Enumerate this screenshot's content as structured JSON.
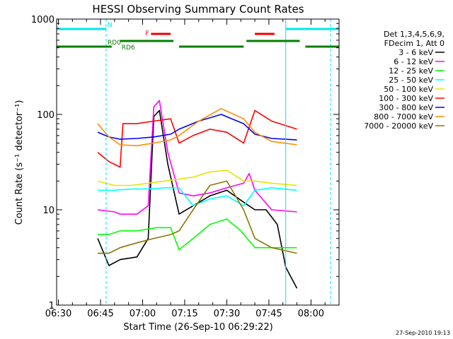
{
  "chart_data": {
    "type": "line",
    "title": "HESSI Observing Summary Count Rates",
    "xlabel": "Start Time (26-Sep-10 06:29:22)",
    "ylabel": "Count Rate (s⁻¹ detector⁻¹)",
    "yscale": "log",
    "ylim": [
      1,
      1000
    ],
    "xlim": [
      "06:29:22",
      "08:10:00"
    ],
    "x_ticks": [
      "06:30",
      "06:45",
      "07:00",
      "07:15",
      "07:30",
      "07:45",
      "08:00"
    ],
    "y_ticks": [
      "1",
      "10",
      "100",
      "1000"
    ],
    "grid": false,
    "legend_position": "right",
    "legend_header": [
      "Det 1,3,4,5,6,9,",
      "FDecim 1, Att 0"
    ],
    "footer": "27-Sep-2010 19:13",
    "flags": [
      {
        "name": "N",
        "color": "#00e5ee",
        "intervals": [
          [
            "06:29:22",
            "06:47:00"
          ],
          [
            "07:51:00",
            "08:10:00"
          ]
        ]
      },
      {
        "name": "F",
        "color": "#ee0000",
        "intervals": [
          [
            "07:03:00",
            "07:10:00"
          ],
          [
            "07:40:00",
            "07:47:00"
          ]
        ]
      },
      {
        "name": "RD0",
        "color": "#008000",
        "intervals": [
          [
            "06:52:00",
            "07:11:00"
          ],
          [
            "07:37:00",
            "07:56:00"
          ]
        ]
      },
      {
        "name": "RD6",
        "color": "#008000",
        "intervals": [
          [
            "06:29:22",
            "06:49:00"
          ],
          [
            "07:13:00",
            "07:36:00"
          ],
          [
            "07:58:00",
            "08:10:00"
          ]
        ]
      }
    ],
    "vlines": [
      {
        "time": "06:29:22",
        "style": "solid",
        "color": "#00e5ee"
      },
      {
        "time": "06:47:00",
        "style": "dashed",
        "color": "#00e5ee"
      },
      {
        "time": "07:51:00",
        "style": "solid",
        "color": "#00e5ee"
      },
      {
        "time": "08:07:00",
        "style": "dashed",
        "color": "#00e5ee"
      }
    ],
    "series": [
      {
        "name": "3 - 6 keV",
        "color": "#000000",
        "x": [
          "06:44:00",
          "06:48:00",
          "06:52:00",
          "06:58:00",
          "07:02:00",
          "07:04:00",
          "07:06:00",
          "07:09:00",
          "07:13:00",
          "07:18:00",
          "07:24:00",
          "07:30:00",
          "07:36:00",
          "07:40:00",
          "07:44:00",
          "07:48:00",
          "07:51:00",
          "07:55:00"
        ],
        "y": [
          5,
          2.6,
          3,
          3.2,
          5,
          95,
          110,
          30,
          9,
          11,
          14,
          16,
          12,
          10,
          10,
          7,
          2.5,
          1.5
        ]
      },
      {
        "name": "6 - 12 keV",
        "color": "#ff00ff",
        "x": [
          "06:44:00",
          "06:50:00",
          "06:52:00",
          "06:58:00",
          "07:02:00",
          "07:04:00",
          "07:06:00",
          "07:09:00",
          "07:13:00",
          "07:18:00",
          "07:24:00",
          "07:30:00",
          "07:36:00",
          "07:38:00",
          "07:40:00",
          "07:46:00",
          "07:55:00"
        ],
        "y": [
          10,
          9.5,
          9,
          9,
          11,
          120,
          140,
          40,
          15,
          14,
          15,
          17,
          19,
          24,
          16,
          10,
          9.5
        ]
      },
      {
        "name": "12 - 25 keV",
        "color": "#00ff00",
        "x": [
          "06:44:00",
          "06:48:00",
          "06:52:00",
          "06:58:00",
          "07:05:00",
          "07:10:00",
          "07:13:00",
          "07:18:00",
          "07:24:00",
          "07:30:00",
          "07:35:00",
          "07:40:00",
          "07:48:00",
          "07:55:00"
        ],
        "y": [
          5.5,
          5.5,
          6,
          6,
          6.5,
          6.5,
          3.8,
          5,
          7,
          8,
          6,
          4,
          4,
          4
        ]
      },
      {
        "name": "25 - 50 keV",
        "color": "#00ffff",
        "x": [
          "06:44:00",
          "06:50:00",
          "06:56:00",
          "07:02:00",
          "07:08:00",
          "07:13:00",
          "07:18:00",
          "07:24:00",
          "07:30:00",
          "07:36:00",
          "07:40:00",
          "07:46:00",
          "07:55:00"
        ],
        "y": [
          16,
          16,
          16.5,
          16.5,
          17,
          17,
          11,
          13,
          14,
          11,
          16,
          17,
          16
        ]
      },
      {
        "name": "50 - 100 keV",
        "color": "#e6e600",
        "x": [
          "06:44:00",
          "06:50:00",
          "06:56:00",
          "07:02:00",
          "07:08:00",
          "07:13:00",
          "07:18:00",
          "07:24:00",
          "07:30:00",
          "07:36:00",
          "07:40:00",
          "07:46:00",
          "07:55:00"
        ],
        "y": [
          20,
          18,
          18,
          19,
          20,
          21,
          22,
          25,
          26,
          20,
          20,
          19,
          18
        ]
      },
      {
        "name": "100 - 300 keV",
        "color": "#ff0000",
        "x": [
          "06:44:00",
          "06:48:00",
          "06:52:00",
          "06:53:00",
          "06:58:00",
          "07:04:00",
          "07:10:00",
          "07:13:00",
          "07:18:00",
          "07:24:00",
          "07:30:00",
          "07:36:00",
          "07:40:00",
          "07:46:00",
          "07:55:00"
        ],
        "y": [
          40,
          32,
          28,
          80,
          80,
          85,
          90,
          50,
          60,
          70,
          65,
          50,
          110,
          85,
          70
        ]
      },
      {
        "name": "300 - 800 keV",
        "color": "#0000ff",
        "x": [
          "06:44:00",
          "06:48:00",
          "06:52:00",
          "06:58:00",
          "07:04:00",
          "07:10:00",
          "07:13:00",
          "07:20:00",
          "07:28:00",
          "07:36:00",
          "07:40:00",
          "07:46:00",
          "07:55:00"
        ],
        "y": [
          65,
          58,
          55,
          56,
          58,
          62,
          70,
          85,
          100,
          80,
          62,
          56,
          54
        ]
      },
      {
        "name": "800 - 7000 keV",
        "color": "#ff8c00",
        "x": [
          "06:44:00",
          "06:48:00",
          "06:52:00",
          "06:58:00",
          "07:04:00",
          "07:10:00",
          "07:13:00",
          "07:20:00",
          "07:28:00",
          "07:36:00",
          "07:40:00",
          "07:46:00",
          "07:55:00"
        ],
        "y": [
          80,
          58,
          48,
          47,
          50,
          54,
          60,
          85,
          115,
          90,
          65,
          52,
          48
        ]
      },
      {
        "name": "7000 - 20000 keV",
        "color": "#8b7500",
        "x": [
          "06:44:00",
          "06:48:00",
          "06:52:00",
          "06:58:00",
          "07:04:00",
          "07:10:00",
          "07:13:00",
          "07:18:00",
          "07:24:00",
          "07:30:00",
          "07:36:00",
          "07:40:00",
          "07:46:00",
          "07:55:00"
        ],
        "y": [
          3.5,
          3.5,
          4,
          4.5,
          5,
          5.5,
          6,
          10,
          18,
          20,
          10,
          5,
          4,
          3.5
        ]
      }
    ]
  }
}
